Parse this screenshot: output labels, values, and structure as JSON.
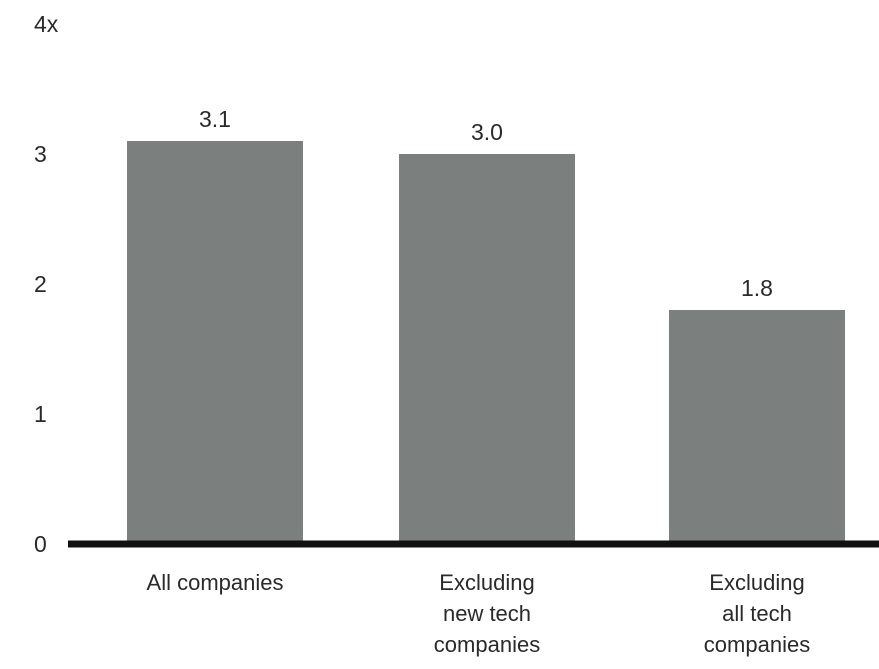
{
  "chart_data": {
    "type": "bar",
    "categories": [
      "All companies",
      "Excluding new tech companies",
      "Excluding all tech companies"
    ],
    "category_label_lines": [
      [
        "All companies"
      ],
      [
        "Excluding",
        "new tech",
        "companies"
      ],
      [
        "Excluding",
        "all tech",
        "companies"
      ]
    ],
    "values": [
      3.1,
      3.0,
      1.8
    ],
    "value_labels": [
      "3.1",
      "3.0",
      "1.8"
    ],
    "y_ticks": [
      {
        "value": 0,
        "label": "0"
      },
      {
        "value": 1,
        "label": "1"
      },
      {
        "value": 2,
        "label": "2"
      },
      {
        "value": 3,
        "label": "3"
      },
      {
        "value": 4,
        "label": "4x"
      }
    ],
    "ylim": [
      0,
      4
    ],
    "title": "",
    "xlabel": "",
    "ylabel": "",
    "grid": false,
    "bar_color": "#7b7f7e",
    "axis_color": "#111111"
  }
}
